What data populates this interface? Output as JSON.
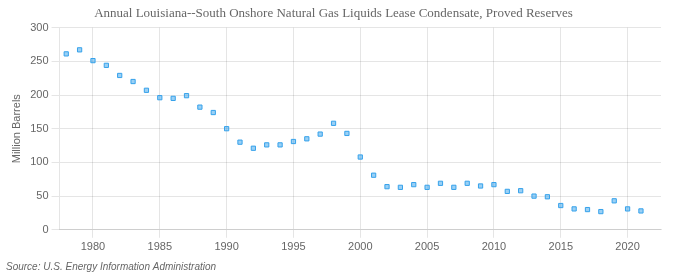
{
  "chart_data": {
    "type": "scatter",
    "title": "Annual Louisiana--South Onshore Natural Gas Liquids Lease Condensate, Proved Reserves",
    "ylabel": "Million Barrels",
    "source": "Source: U.S. Energy Information Administration",
    "x": [
      1978,
      1979,
      1980,
      1981,
      1982,
      1983,
      1984,
      1985,
      1986,
      1987,
      1988,
      1989,
      1990,
      1991,
      1992,
      1993,
      1994,
      1995,
      1996,
      1997,
      1998,
      1999,
      2000,
      2001,
      2002,
      2003,
      2004,
      2005,
      2006,
      2007,
      2008,
      2009,
      2010,
      2011,
      2012,
      2013,
      2014,
      2015,
      2016,
      2017,
      2018,
      2019,
      2020,
      2021
    ],
    "values": [
      261,
      267,
      251,
      244,
      229,
      220,
      207,
      196,
      195,
      199,
      182,
      174,
      150,
      130,
      121,
      126,
      126,
      131,
      135,
      142,
      158,
      143,
      108,
      81,
      64,
      63,
      67,
      63,
      69,
      63,
      69,
      65,
      67,
      57,
      58,
      50,
      49,
      36,
      31,
      30,
      27,
      43,
      31,
      28
    ],
    "xlim": [
      1977.5,
      2022.5
    ],
    "xticks": [
      1980,
      1985,
      1990,
      1995,
      2000,
      2005,
      2010,
      2015,
      2020
    ],
    "ylim": [
      0,
      300
    ],
    "yticks": [
      0,
      50,
      100,
      150,
      200,
      250,
      300
    ],
    "grid": true,
    "marker": "square"
  }
}
